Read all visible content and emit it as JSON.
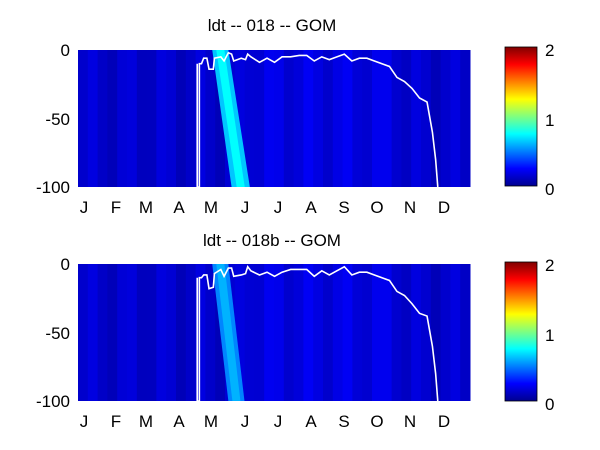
{
  "chart_data": [
    {
      "type": "heatmap",
      "title": "ldt -- 018 -- GOM",
      "xlabel": "",
      "ylabel": "",
      "x_tick_labels": [
        "J",
        "F",
        "M",
        "A",
        "M",
        "J",
        "J",
        "A",
        "S",
        "O",
        "N",
        "D"
      ],
      "y_tick_labels": [
        "0",
        "-50",
        "-100"
      ],
      "xlim": [
        0,
        365
      ],
      "ylim": [
        -100,
        0
      ],
      "colormap": "jet",
      "clim": [
        0,
        2
      ],
      "colorbar_tick_labels": [
        "2",
        "1",
        "0"
      ],
      "bloom_band": {
        "top_day_range": [
          125,
          140
        ],
        "bottom_day_range": [
          143,
          160
        ],
        "peak_value": 0.75
      },
      "background_value": 0.15,
      "contour_line": {
        "color": "#ffffff",
        "points": [
          [
            111,
            -10
          ],
          [
            111,
            -100
          ],
          [
            113,
            -100
          ],
          [
            113,
            -10
          ],
          [
            115,
            -10
          ],
          [
            117,
            -6
          ],
          [
            120,
            -6
          ],
          [
            122,
            -14
          ],
          [
            126,
            -14
          ],
          [
            127,
            -6
          ],
          [
            133,
            -5
          ],
          [
            136,
            -8
          ],
          [
            140,
            -2
          ],
          [
            143,
            -3
          ],
          [
            145,
            -8
          ],
          [
            152,
            -6
          ],
          [
            156,
            -7
          ],
          [
            158,
            -3
          ],
          [
            161,
            -5
          ],
          [
            169,
            -9
          ],
          [
            176,
            -6
          ],
          [
            183,
            -9
          ],
          [
            190,
            -5
          ],
          [
            198,
            -5
          ],
          [
            206,
            -4
          ],
          [
            213,
            -4
          ],
          [
            220,
            -8
          ],
          [
            227,
            -5
          ],
          [
            234,
            -7
          ],
          [
            241,
            -5
          ],
          [
            248,
            -3
          ],
          [
            255,
            -8
          ],
          [
            262,
            -6
          ],
          [
            269,
            -6
          ],
          [
            276,
            -8
          ],
          [
            283,
            -10
          ],
          [
            290,
            -12
          ],
          [
            297,
            -20
          ],
          [
            304,
            -23
          ],
          [
            311,
            -28
          ],
          [
            318,
            -35
          ],
          [
            325,
            -38
          ],
          [
            330,
            -60
          ],
          [
            333,
            -80
          ],
          [
            335,
            -100
          ]
        ]
      }
    },
    {
      "type": "heatmap",
      "title": "ldt -- 018b -- GOM",
      "xlabel": "",
      "ylabel": "",
      "x_tick_labels": [
        "J",
        "F",
        "M",
        "A",
        "M",
        "J",
        "J",
        "A",
        "S",
        "O",
        "N",
        "D"
      ],
      "y_tick_labels": [
        "0",
        "-50",
        "-100"
      ],
      "xlim": [
        0,
        365
      ],
      "ylim": [
        -100,
        0
      ],
      "colormap": "jet",
      "clim": [
        0,
        2
      ],
      "colorbar_tick_labels": [
        "2",
        "1",
        "0"
      ],
      "bloom_band": {
        "top_day_range": [
          125,
          140
        ],
        "bottom_day_range": [
          140,
          155
        ],
        "peak_value": 0.6
      },
      "background_value": 0.15,
      "contour_line": {
        "color": "#ffffff",
        "points": [
          [
            111,
            -10
          ],
          [
            111,
            -100
          ],
          [
            113,
            -100
          ],
          [
            113,
            -10
          ],
          [
            115,
            -10
          ],
          [
            117,
            -8
          ],
          [
            120,
            -8
          ],
          [
            122,
            -18
          ],
          [
            126,
            -17
          ],
          [
            127,
            -7
          ],
          [
            133,
            -4
          ],
          [
            136,
            -9
          ],
          [
            140,
            -3
          ],
          [
            143,
            -3
          ],
          [
            145,
            -9
          ],
          [
            152,
            -8
          ],
          [
            156,
            -7
          ],
          [
            158,
            -2
          ],
          [
            161,
            -5
          ],
          [
            169,
            -8
          ],
          [
            176,
            -6
          ],
          [
            183,
            -9
          ],
          [
            190,
            -6
          ],
          [
            198,
            -4
          ],
          [
            206,
            -4
          ],
          [
            213,
            -4
          ],
          [
            220,
            -9
          ],
          [
            227,
            -5
          ],
          [
            234,
            -8
          ],
          [
            241,
            -5
          ],
          [
            248,
            -2
          ],
          [
            255,
            -8
          ],
          [
            262,
            -6
          ],
          [
            269,
            -6
          ],
          [
            276,
            -8
          ],
          [
            283,
            -10
          ],
          [
            290,
            -12
          ],
          [
            297,
            -20
          ],
          [
            304,
            -23
          ],
          [
            311,
            -29
          ],
          [
            318,
            -36
          ],
          [
            325,
            -38
          ],
          [
            330,
            -60
          ],
          [
            333,
            -80
          ],
          [
            335,
            -100
          ]
        ]
      }
    }
  ]
}
